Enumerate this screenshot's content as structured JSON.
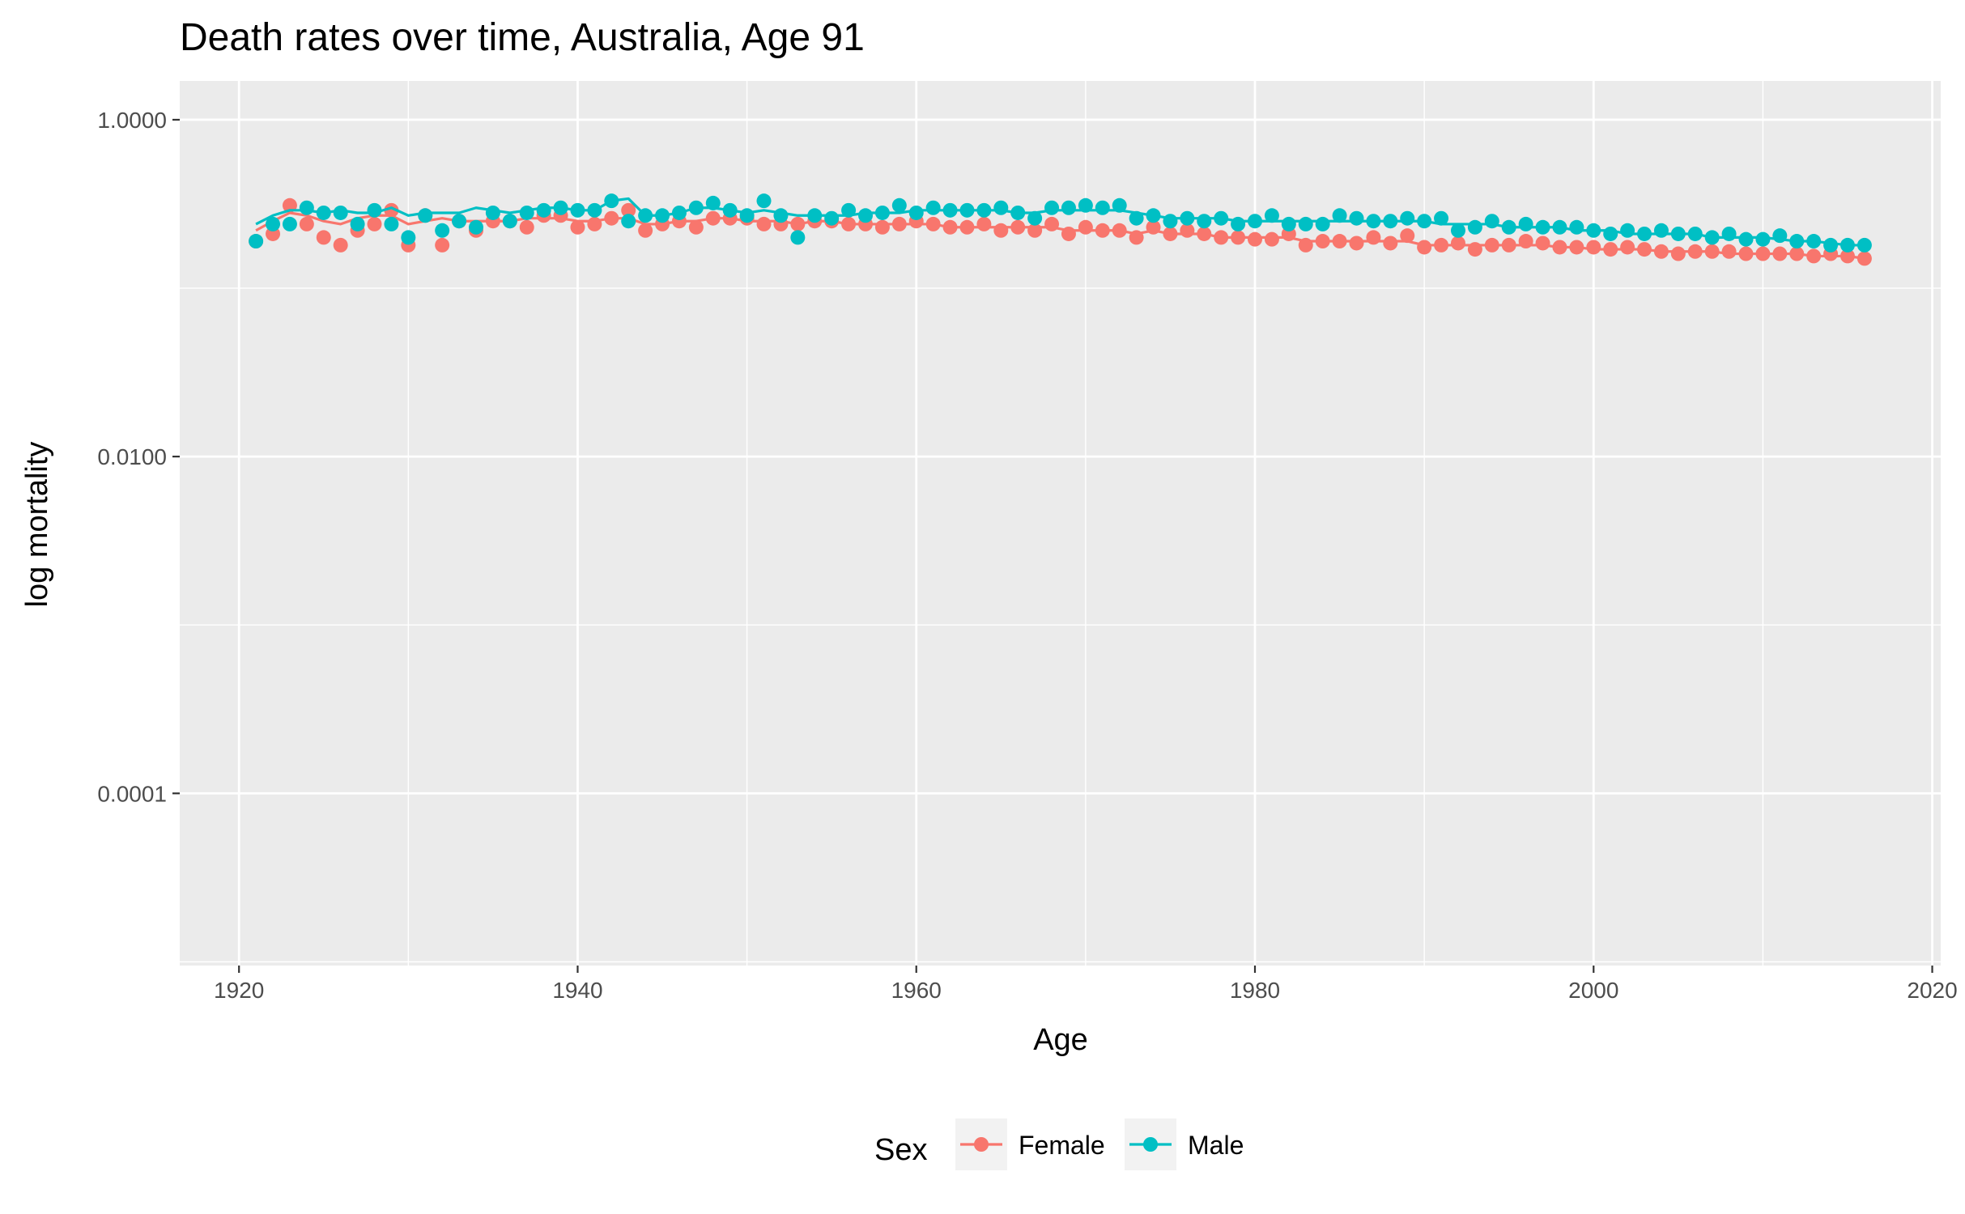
{
  "chart_data": {
    "type": "line",
    "title": "Death rates over time, Australia, Age 91",
    "xlabel": "Age",
    "ylabel": "log mortality",
    "x_scale": "linear",
    "y_scale": "log10",
    "xlim": [
      1916.5,
      2020.5
    ],
    "ylim": [
      9.5e-06,
      1.7
    ],
    "x_ticks": [
      1920,
      1940,
      1960,
      1980,
      2000,
      2020
    ],
    "x_tick_labels": [
      "1920",
      "1940",
      "1960",
      "1980",
      "2000",
      "2020"
    ],
    "y_ticks": [
      1,
      0.01,
      0.0001
    ],
    "y_tick_labels": [
      "1.0000",
      "0.0100",
      "0.0001"
    ],
    "grid": true,
    "legend": {
      "title": "Sex",
      "position": "bottom"
    },
    "panel_color": "#ebebeb",
    "series": [
      {
        "name": "Female",
        "color": "#f8766d",
        "x": [
          1921,
          1922,
          1923,
          1924,
          1925,
          1926,
          1927,
          1928,
          1929,
          1930,
          1931,
          1932,
          1933,
          1934,
          1935,
          1936,
          1937,
          1938,
          1939,
          1940,
          1941,
          1942,
          1943,
          1944,
          1945,
          1946,
          1947,
          1948,
          1949,
          1950,
          1951,
          1952,
          1953,
          1954,
          1955,
          1956,
          1957,
          1958,
          1959,
          1960,
          1961,
          1962,
          1963,
          1964,
          1965,
          1966,
          1967,
          1968,
          1969,
          1970,
          1971,
          1972,
          1973,
          1974,
          1975,
          1976,
          1977,
          1978,
          1979,
          1980,
          1981,
          1982,
          1983,
          1984,
          1985,
          1986,
          1987,
          1988,
          1989,
          1990,
          1991,
          1992,
          1993,
          1994,
          1995,
          1996,
          1997,
          1998,
          1999,
          2000,
          2001,
          2002,
          2003,
          2004,
          2005,
          2006,
          2007,
          2008,
          2009,
          2010,
          2011,
          2012,
          2013,
          2014,
          2015,
          2016
        ],
        "points": [
          0.19,
          0.21,
          0.31,
          0.24,
          0.2,
          0.18,
          0.22,
          0.24,
          0.29,
          0.18,
          0.27,
          0.18,
          0.25,
          0.22,
          0.25,
          0.25,
          0.23,
          0.27,
          0.27,
          0.23,
          0.24,
          0.26,
          0.29,
          0.22,
          0.24,
          0.25,
          0.23,
          0.26,
          0.26,
          0.26,
          0.24,
          0.24,
          0.24,
          0.25,
          0.25,
          0.24,
          0.24,
          0.23,
          0.24,
          0.25,
          0.24,
          0.23,
          0.23,
          0.24,
          0.22,
          0.23,
          0.22,
          0.24,
          0.21,
          0.23,
          0.22,
          0.22,
          0.2,
          0.23,
          0.21,
          0.22,
          0.21,
          0.2,
          0.2,
          0.195,
          0.195,
          0.21,
          0.18,
          0.19,
          0.19,
          0.185,
          0.2,
          0.185,
          0.205,
          0.175,
          0.18,
          0.185,
          0.17,
          0.18,
          0.18,
          0.19,
          0.185,
          0.175,
          0.175,
          0.175,
          0.17,
          0.175,
          0.17,
          0.165,
          0.16,
          0.165,
          0.165,
          0.165,
          0.16,
          0.16,
          0.16,
          0.16,
          0.155,
          0.16,
          0.155,
          0.15
        ],
        "line": [
          0.22,
          0.25,
          0.28,
          0.27,
          0.25,
          0.24,
          0.26,
          0.27,
          0.27,
          0.24,
          0.25,
          0.26,
          0.25,
          0.25,
          0.25,
          0.25,
          0.26,
          0.26,
          0.26,
          0.25,
          0.25,
          0.26,
          0.26,
          0.24,
          0.24,
          0.25,
          0.25,
          0.26,
          0.26,
          0.25,
          0.25,
          0.25,
          0.24,
          0.25,
          0.25,
          0.24,
          0.24,
          0.24,
          0.24,
          0.24,
          0.24,
          0.23,
          0.23,
          0.23,
          0.23,
          0.23,
          0.23,
          0.23,
          0.22,
          0.22,
          0.22,
          0.22,
          0.21,
          0.22,
          0.21,
          0.21,
          0.21,
          0.2,
          0.2,
          0.2,
          0.2,
          0.2,
          0.19,
          0.19,
          0.19,
          0.19,
          0.19,
          0.19,
          0.19,
          0.18,
          0.18,
          0.18,
          0.18,
          0.18,
          0.18,
          0.18,
          0.18,
          0.175,
          0.175,
          0.17,
          0.17,
          0.17,
          0.17,
          0.165,
          0.165,
          0.165,
          0.165,
          0.16,
          0.16,
          0.16,
          0.16,
          0.16,
          0.155,
          0.155,
          0.155,
          0.15
        ]
      },
      {
        "name": "Male",
        "color": "#00bfc4",
        "x": [
          1921,
          1922,
          1923,
          1924,
          1925,
          1926,
          1927,
          1928,
          1929,
          1930,
          1931,
          1932,
          1933,
          1934,
          1935,
          1936,
          1937,
          1938,
          1939,
          1940,
          1941,
          1942,
          1943,
          1944,
          1945,
          1946,
          1947,
          1948,
          1949,
          1950,
          1951,
          1952,
          1953,
          1954,
          1955,
          1956,
          1957,
          1958,
          1959,
          1960,
          1961,
          1962,
          1963,
          1964,
          1965,
          1966,
          1967,
          1968,
          1969,
          1970,
          1971,
          1972,
          1973,
          1974,
          1975,
          1976,
          1977,
          1978,
          1979,
          1980,
          1981,
          1982,
          1983,
          1984,
          1985,
          1986,
          1987,
          1988,
          1989,
          1990,
          1991,
          1992,
          1993,
          1994,
          1995,
          1996,
          1997,
          1998,
          1999,
          2000,
          2001,
          2002,
          2003,
          2004,
          2005,
          2006,
          2007,
          2008,
          2009,
          2010,
          2011,
          2012,
          2013,
          2014,
          2015,
          2016
        ],
        "points": [
          0.19,
          0.24,
          0.24,
          0.3,
          0.28,
          0.28,
          0.24,
          0.29,
          0.24,
          0.2,
          0.27,
          0.22,
          0.25,
          0.23,
          0.28,
          0.25,
          0.28,
          0.29,
          0.3,
          0.29,
          0.29,
          0.33,
          0.25,
          0.27,
          0.27,
          0.28,
          0.3,
          0.32,
          0.29,
          0.27,
          0.33,
          0.27,
          0.2,
          0.27,
          0.26,
          0.29,
          0.27,
          0.28,
          0.31,
          0.28,
          0.3,
          0.29,
          0.29,
          0.29,
          0.3,
          0.28,
          0.26,
          0.3,
          0.3,
          0.31,
          0.3,
          0.31,
          0.26,
          0.27,
          0.25,
          0.26,
          0.25,
          0.26,
          0.24,
          0.25,
          0.27,
          0.24,
          0.24,
          0.24,
          0.27,
          0.26,
          0.25,
          0.25,
          0.26,
          0.25,
          0.26,
          0.22,
          0.23,
          0.25,
          0.23,
          0.24,
          0.23,
          0.23,
          0.23,
          0.22,
          0.21,
          0.22,
          0.21,
          0.22,
          0.21,
          0.21,
          0.2,
          0.21,
          0.195,
          0.195,
          0.205,
          0.19,
          0.19,
          0.18,
          0.18,
          0.18
        ],
        "line": [
          0.24,
          0.27,
          0.29,
          0.29,
          0.28,
          0.29,
          0.28,
          0.28,
          0.3,
          0.27,
          0.28,
          0.28,
          0.28,
          0.3,
          0.29,
          0.28,
          0.29,
          0.3,
          0.3,
          0.29,
          0.29,
          0.33,
          0.34,
          0.27,
          0.27,
          0.28,
          0.3,
          0.3,
          0.29,
          0.28,
          0.29,
          0.28,
          0.27,
          0.27,
          0.27,
          0.27,
          0.28,
          0.28,
          0.28,
          0.29,
          0.29,
          0.29,
          0.29,
          0.29,
          0.29,
          0.28,
          0.28,
          0.29,
          0.29,
          0.29,
          0.29,
          0.29,
          0.28,
          0.27,
          0.26,
          0.26,
          0.26,
          0.26,
          0.25,
          0.25,
          0.25,
          0.25,
          0.25,
          0.25,
          0.25,
          0.25,
          0.25,
          0.25,
          0.25,
          0.25,
          0.24,
          0.24,
          0.24,
          0.24,
          0.23,
          0.23,
          0.23,
          0.23,
          0.22,
          0.22,
          0.22,
          0.21,
          0.21,
          0.21,
          0.21,
          0.21,
          0.2,
          0.2,
          0.2,
          0.2,
          0.195,
          0.19,
          0.19,
          0.185,
          0.18,
          0.18
        ]
      }
    ]
  }
}
